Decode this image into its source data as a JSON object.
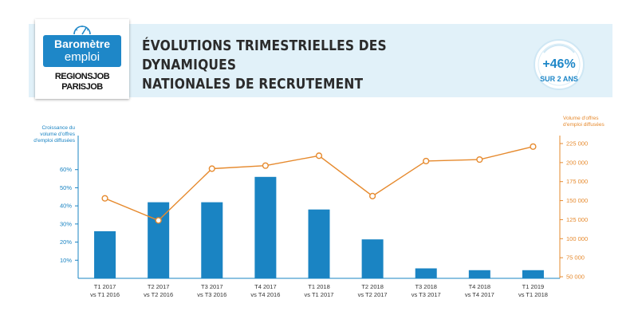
{
  "header": {
    "title_line1": "ÉVOLUTIONS TRIMESTRIELLES DES DYNAMIQUES",
    "title_line2": "NATIONALES DE RECRUTEMENT",
    "logo_line1": "Baromètre",
    "logo_line2": "emploi",
    "logo_brand1": "REGIONSJOB",
    "logo_brand2": "PARISJOB",
    "badge_value": "+46%",
    "badge_label": "SUR 2 ANS"
  },
  "colors": {
    "bar": "#1a84c3",
    "line": "#e68a2e",
    "left_axis": "#1a84c3",
    "right_axis": "#e68a2e",
    "banner": "#e1f1f9"
  },
  "chart_data": {
    "type": "bar",
    "categories": [
      [
        "T1 2017",
        "vs T1 2016"
      ],
      [
        "T2 2017",
        "vs T2 2016"
      ],
      [
        "T3 2017",
        "vs T3 2016"
      ],
      [
        "T4 2017",
        "vs T4 2016"
      ],
      [
        "T1 2018",
        "vs T1 2017"
      ],
      [
        "T2 2018",
        "vs T2 2017"
      ],
      [
        "T3 2018",
        "vs T3 2017"
      ],
      [
        "T4 2018",
        "vs T4 2017"
      ],
      [
        "T1 2019",
        "vs T1 2018"
      ]
    ],
    "series": [
      {
        "type": "bar",
        "axis": "left",
        "values": [
          26,
          42,
          42,
          56,
          38,
          21.5,
          5.5,
          4.5,
          4.5
        ]
      },
      {
        "type": "line",
        "axis": "right",
        "values": [
          153000,
          124000,
          192000,
          196000,
          209000,
          156000,
          202000,
          204000,
          221000
        ]
      }
    ],
    "left_axis": {
      "label_lines": [
        "Croissance du",
        "volume d'offres",
        "d'emploi diffusées"
      ],
      "ticks": [
        "10%",
        "20%",
        "30%",
        "40%",
        "50%",
        "60%"
      ],
      "tick_values": [
        10,
        20,
        30,
        40,
        50,
        60
      ],
      "ylim": [
        0,
        70
      ]
    },
    "right_axis": {
      "label_lines": [
        "Volume d'offres",
        "d'emploi diffusées"
      ],
      "ticks": [
        "50 000",
        "75 000",
        "100 000",
        "125 000",
        "150 000",
        "175 000",
        "200 000",
        "225 000"
      ],
      "tick_values": [
        50000,
        75000,
        100000,
        125000,
        150000,
        175000,
        200000,
        225000
      ],
      "ylim": [
        50000,
        235000
      ]
    },
    "grid": false
  }
}
